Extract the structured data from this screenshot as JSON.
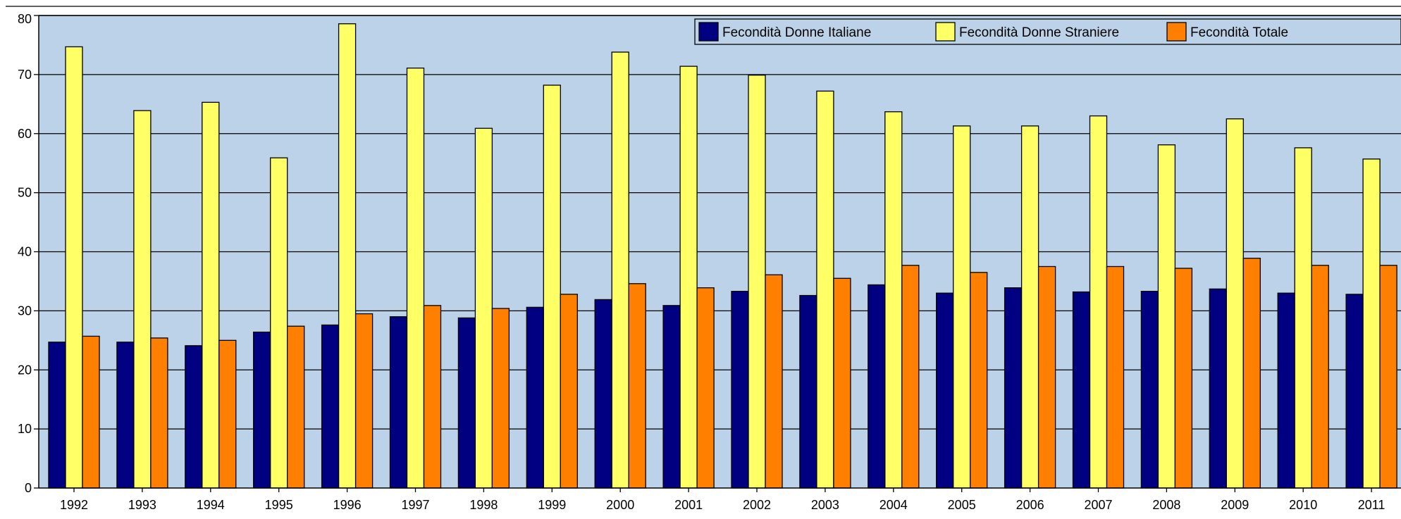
{
  "chart_data": {
    "type": "bar",
    "categories": [
      "1992",
      "1993",
      "1994",
      "1995",
      "1996",
      "1997",
      "1998",
      "1999",
      "2000",
      "2001",
      "2002",
      "2003",
      "2004",
      "2005",
      "2006",
      "2007",
      "2008",
      "2009",
      "2010",
      "2011"
    ],
    "series": [
      {
        "name": "Fecondità Donne Italiane",
        "color": "#000080",
        "values": [
          24.7,
          24.7,
          24.1,
          26.4,
          27.6,
          29.0,
          28.8,
          30.6,
          31.9,
          30.9,
          33.3,
          32.6,
          34.4,
          33.0,
          33.9,
          33.2,
          33.3,
          33.7,
          33.0,
          32.8
        ]
      },
      {
        "name": "Fecondità Donne Straniere",
        "color": "#ffff66",
        "values": [
          74.7,
          63.9,
          65.3,
          55.9,
          78.6,
          71.1,
          60.9,
          68.2,
          73.8,
          71.4,
          69.9,
          67.2,
          63.7,
          61.3,
          61.3,
          63.0,
          58.1,
          62.5,
          57.6,
          55.7
        ]
      },
      {
        "name": "Fecondità Totale",
        "color": "#ff8000",
        "values": [
          25.7,
          25.4,
          25.0,
          27.4,
          29.5,
          30.9,
          30.4,
          32.8,
          34.6,
          33.9,
          36.1,
          35.5,
          37.7,
          36.5,
          37.5,
          37.5,
          37.2,
          38.9,
          37.7,
          37.7
        ]
      }
    ],
    "y_ticks": [
      "0",
      "10",
      "20",
      "30",
      "40",
      "50",
      "60",
      "70",
      "80"
    ],
    "ylim": [
      0,
      80
    ],
    "grid": true,
    "legend_position": "top-right",
    "plot_background": "#bcd2e8",
    "gridline_color": "#000000"
  }
}
